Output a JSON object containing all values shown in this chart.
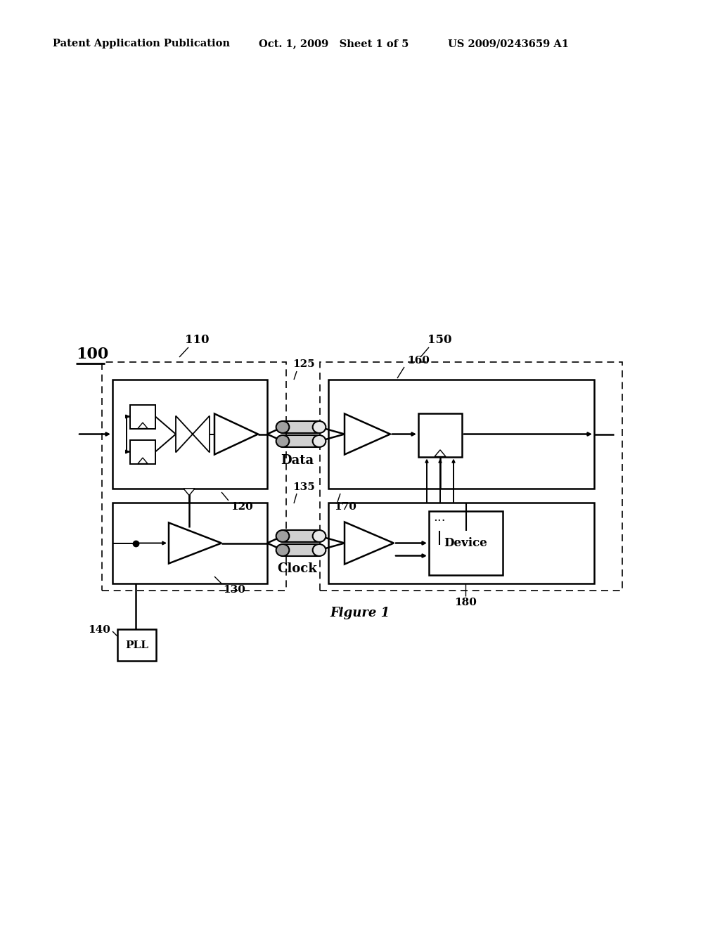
{
  "bg_color": "#ffffff",
  "header_left": "Patent Application Publication",
  "header_mid": "Oct. 1, 2009   Sheet 1 of 5",
  "header_right": "US 2009/0243659 A1",
  "figure_caption": "Figure 1",
  "label_100": "100",
  "label_110": "110",
  "label_120": "120",
  "label_125": "125",
  "label_130": "130",
  "label_135": "135",
  "label_140": "140",
  "label_150": "150",
  "label_160": "160",
  "label_170": "170",
  "label_180": "180",
  "label_PLL": "PLL",
  "label_Device": "Device",
  "label_Data": "Data",
  "label_Clock": "Clock",
  "label_dots": "..."
}
